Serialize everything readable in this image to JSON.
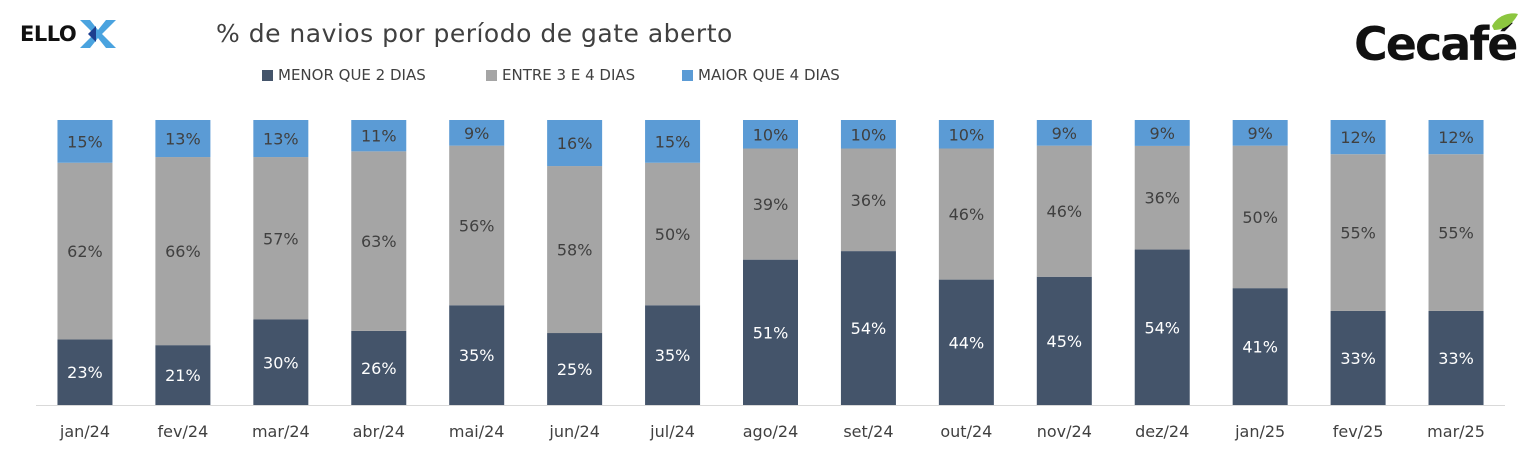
{
  "chart_data": {
    "type": "bar",
    "stacked": true,
    "title": "% de navios por período de gate aberto",
    "xlabel": "",
    "ylabel": "",
    "categories": [
      "jan/24",
      "fev/24",
      "mar/24",
      "abr/24",
      "mai/24",
      "jun/24",
      "jul/24",
      "ago/24",
      "set/24",
      "out/24",
      "nov/24",
      "dez/24",
      "jan/25",
      "fev/25",
      "mar/25"
    ],
    "series": [
      {
        "name": "MENOR QUE 2 DIAS",
        "color": "#44546a",
        "label_color": "#ffffff",
        "values": [
          23,
          21,
          30,
          26,
          35,
          25,
          35,
          51,
          54,
          44,
          45,
          54,
          41,
          33,
          33
        ]
      },
      {
        "name": "ENTRE 3 E 4 DIAS",
        "color": "#a5a5a5",
        "label_color": "#404040",
        "values": [
          62,
          66,
          57,
          63,
          56,
          58,
          50,
          39,
          36,
          46,
          46,
          36,
          50,
          55,
          55
        ]
      },
      {
        "name": "MAIOR QUE 4 DIAS",
        "color": "#5b9bd5",
        "label_color": "#404040",
        "values": [
          15,
          13,
          13,
          11,
          9,
          16,
          15,
          10,
          10,
          10,
          9,
          9,
          9,
          12,
          12
        ]
      }
    ],
    "data_labels": true,
    "label_suffix": "%",
    "legend_position": "top",
    "grid": false
  },
  "logos": {
    "left_text": "ELLO",
    "right_text": "Cecafé",
    "ello_mark_colors": [
      "#1d3f8f",
      "#4aa3df"
    ],
    "cecafe_leaf_color": "#8cc63f"
  }
}
